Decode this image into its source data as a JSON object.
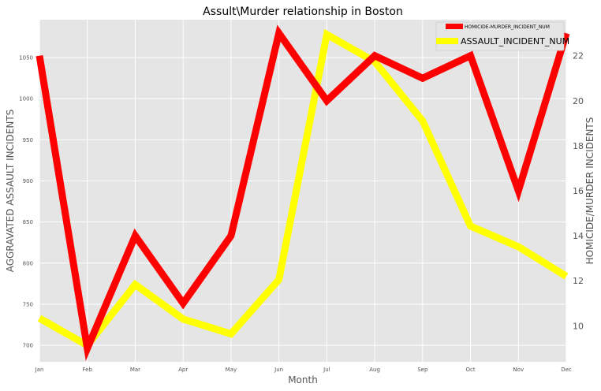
{
  "chart_data": {
    "type": "line",
    "title": "Assult\\Murder relationship in Boston",
    "xlabel": "Month",
    "categories": [
      "Jan",
      "Feb",
      "Mar",
      "Apr",
      "May",
      "Jun",
      "Jul",
      "Aug",
      "Sep",
      "Oct",
      "Nov",
      "Dec"
    ],
    "y_left": {
      "label": "AGGRAVATED ASSAULT INCIDENTS",
      "ylim": [
        680,
        1096
      ],
      "ticks": [
        700,
        750,
        800,
        850,
        900,
        950,
        1000,
        1050
      ]
    },
    "y_right": {
      "label": "HOMICIDE/MURDER INCIDENTS",
      "ylim": [
        8.4,
        23.6
      ],
      "ticks": [
        10,
        12,
        14,
        16,
        18,
        20,
        22
      ]
    },
    "series": [
      {
        "name": "HOMICIDE-MURDER_INCIDENT_NUM",
        "axis": "right",
        "color": "#ff0000",
        "values": [
          22,
          9,
          14,
          11,
          14,
          23,
          20,
          22,
          21,
          22,
          16,
          23
        ]
      },
      {
        "name": "ASSAULT_INCIDENT_NUM",
        "axis": "left",
        "color": "#ffff00",
        "values": [
          733,
          700,
          774,
          732,
          714,
          780,
          1078,
          1045,
          973,
          845,
          820,
          784
        ]
      }
    ],
    "legend": {
      "position": "top-right",
      "header": "None"
    },
    "grid": true,
    "style": {
      "plot_background": "#e5e5e5",
      "grid_color": "#ffffff"
    }
  }
}
